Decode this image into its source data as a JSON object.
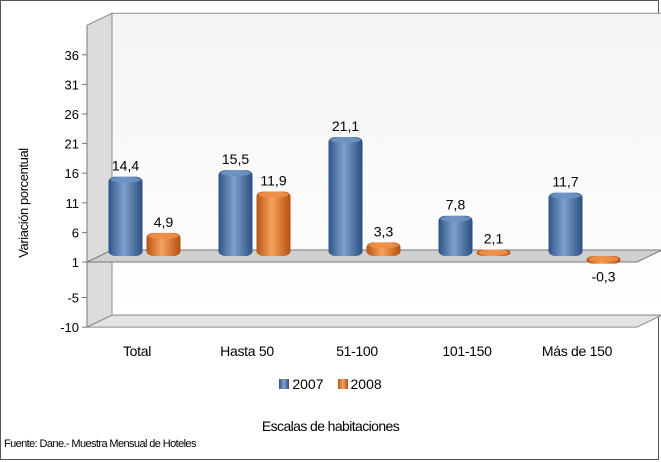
{
  "colors": {
    "s2007": "#4a76ad",
    "s2008": "#e57a2c"
  },
  "footer": {
    "source": "Fuente: Dane.- Muestra Mensual de Hoteles"
  },
  "chart_data": {
    "type": "bar",
    "title": "",
    "xlabel": "Escalas de habitaciones",
    "ylabel": "Variación porcentual",
    "categories": [
      "Total",
      "Hasta 50",
      "51-100",
      "101-150",
      "Más de 150"
    ],
    "series": [
      {
        "name": "2007",
        "values": [
          14.4,
          15.5,
          21.1,
          7.8,
          11.7
        ],
        "labels": [
          "14,4",
          "15,5",
          "21,1",
          "7,8",
          "11,7"
        ]
      },
      {
        "name": "2008",
        "values": [
          4.9,
          11.9,
          3.3,
          2.1,
          -0.3
        ],
        "labels": [
          "4,9",
          "11,9",
          "3,3",
          "2,1",
          "-0,3"
        ]
      }
    ],
    "yticks": [
      -10,
      -5,
      1,
      6,
      11,
      16,
      21,
      26,
      31,
      36
    ],
    "ylim": [
      -10,
      41
    ],
    "grid": false,
    "legend": "bottom"
  }
}
